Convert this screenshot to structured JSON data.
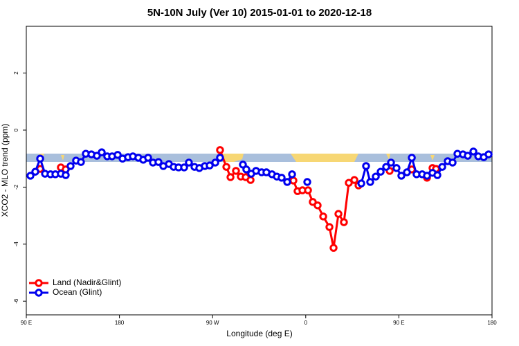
{
  "chart_data": {
    "type": "line",
    "title": "5N-10N July (Ver 10)   2015-01-01 to 2020-12-18",
    "xlabel": "Longitude (deg E)",
    "ylabel": "XCO2 - MLO trend (ppm)",
    "xlim": [
      90,
      540
    ],
    "ylim": [
      -6.48,
      3.64
    ],
    "xticks": [
      {
        "value": 90,
        "label": "90 E"
      },
      180,
      {
        "value": 270,
        "label": "90 W"
      },
      {
        "value": 360,
        "label": "0"
      },
      {
        "value": 450,
        "label": "90 E"
      },
      {
        "value": 540,
        "label": "180"
      }
    ],
    "yticks": [
      -6,
      -4,
      -2,
      0,
      2
    ],
    "legend": "bottomleft",
    "series": [
      {
        "name": "Land (Nadir&Glint)",
        "color": "#ff0000",
        "x": [
          103.4,
          null,
          123.4,
          128.1,
          null,
          277.2,
          283.3,
          287.3,
          292.6,
          297.3,
          302.0,
          306.7,
          null,
          348.1,
          352.1,
          356.8,
          362.2,
          366.8,
          371.5,
          376.9,
          382.9,
          386.9,
          391.6,
          396.9,
          401.6,
          407.0,
          411.0,
          null,
          441.1,
          null,
          462.5,
          null,
          477.2,
          null,
          482.5,
          485.9
        ],
        "values": [
          -1.36,
          null,
          -1.31,
          -1.38,
          null,
          -0.7,
          -1.29,
          -1.65,
          -1.43,
          -1.63,
          -1.65,
          -1.75,
          null,
          -1.77,
          -2.14,
          -2.11,
          -2.11,
          -2.52,
          -2.64,
          -3.03,
          -3.4,
          -4.13,
          -2.94,
          -3.23,
          -1.85,
          -1.75,
          -1.94,
          null,
          -1.43,
          null,
          -1.38,
          null,
          -1.67,
          null,
          -1.33,
          -1.36
        ]
      },
      {
        "name": "Ocean (Glint)",
        "color": "#0000ee",
        "x": [
          94.0,
          98.7,
          103.4,
          108.1,
          113.4,
          118.1,
          123.4,
          128.1,
          132.8,
          138.1,
          142.8,
          147.5,
          152.9,
          158.2,
          162.9,
          168.2,
          172.9,
          178.3,
          183.0,
          188.3,
          193.0,
          198.3,
          203.0,
          207.7,
          212.4,
          217.7,
          222.4,
          227.8,
          232.4,
          237.1,
          242.5,
          247.1,
          252.5,
          257.2,
          262.5,
          267.2,
          272.6,
          277.2,
          null,
          299.3,
          302.6,
          307.3,
          312.0,
          317.4,
          322.0,
          327.4,
          332.1,
          336.7,
          342.1,
          346.8,
          null,
          361.5,
          null,
          413.7,
          418.3,
          422.3,
          427.7,
          432.4,
          437.7,
          442.4,
          447.7,
          452.4,
          457.8,
          462.5,
          467.1,
          472.5,
          477.2,
          482.5,
          487.2,
          491.9,
          497.2,
          501.9,
          506.6,
          511.9,
          516.6,
          522.0,
          526.7,
          532.0,
          536.7
        ],
        "values": [
          -1.6,
          -1.46,
          -1.0,
          -1.53,
          -1.55,
          -1.55,
          -1.53,
          -1.58,
          -1.26,
          -1.07,
          -1.12,
          -0.83,
          -0.85,
          -0.9,
          -0.78,
          -0.92,
          -0.92,
          -0.87,
          -1.0,
          -0.95,
          -0.92,
          -0.97,
          -1.04,
          -0.97,
          -1.14,
          -1.12,
          -1.26,
          -1.19,
          -1.29,
          -1.31,
          -1.31,
          -1.14,
          -1.29,
          -1.33,
          -1.26,
          -1.24,
          -1.14,
          -0.97,
          null,
          -1.21,
          -1.38,
          -1.53,
          -1.43,
          -1.48,
          -1.48,
          -1.55,
          -1.63,
          -1.67,
          -1.82,
          -1.55,
          null,
          -1.82,
          null,
          -1.87,
          -1.26,
          -1.82,
          -1.63,
          -1.46,
          -1.29,
          -1.14,
          -1.33,
          -1.6,
          -1.48,
          -0.97,
          -1.55,
          -1.55,
          -1.6,
          -1.5,
          -1.58,
          -1.29,
          -1.09,
          -1.14,
          -0.83,
          -0.85,
          -0.9,
          -0.75,
          -0.92,
          -0.95,
          -0.85
        ]
      }
    ]
  }
}
